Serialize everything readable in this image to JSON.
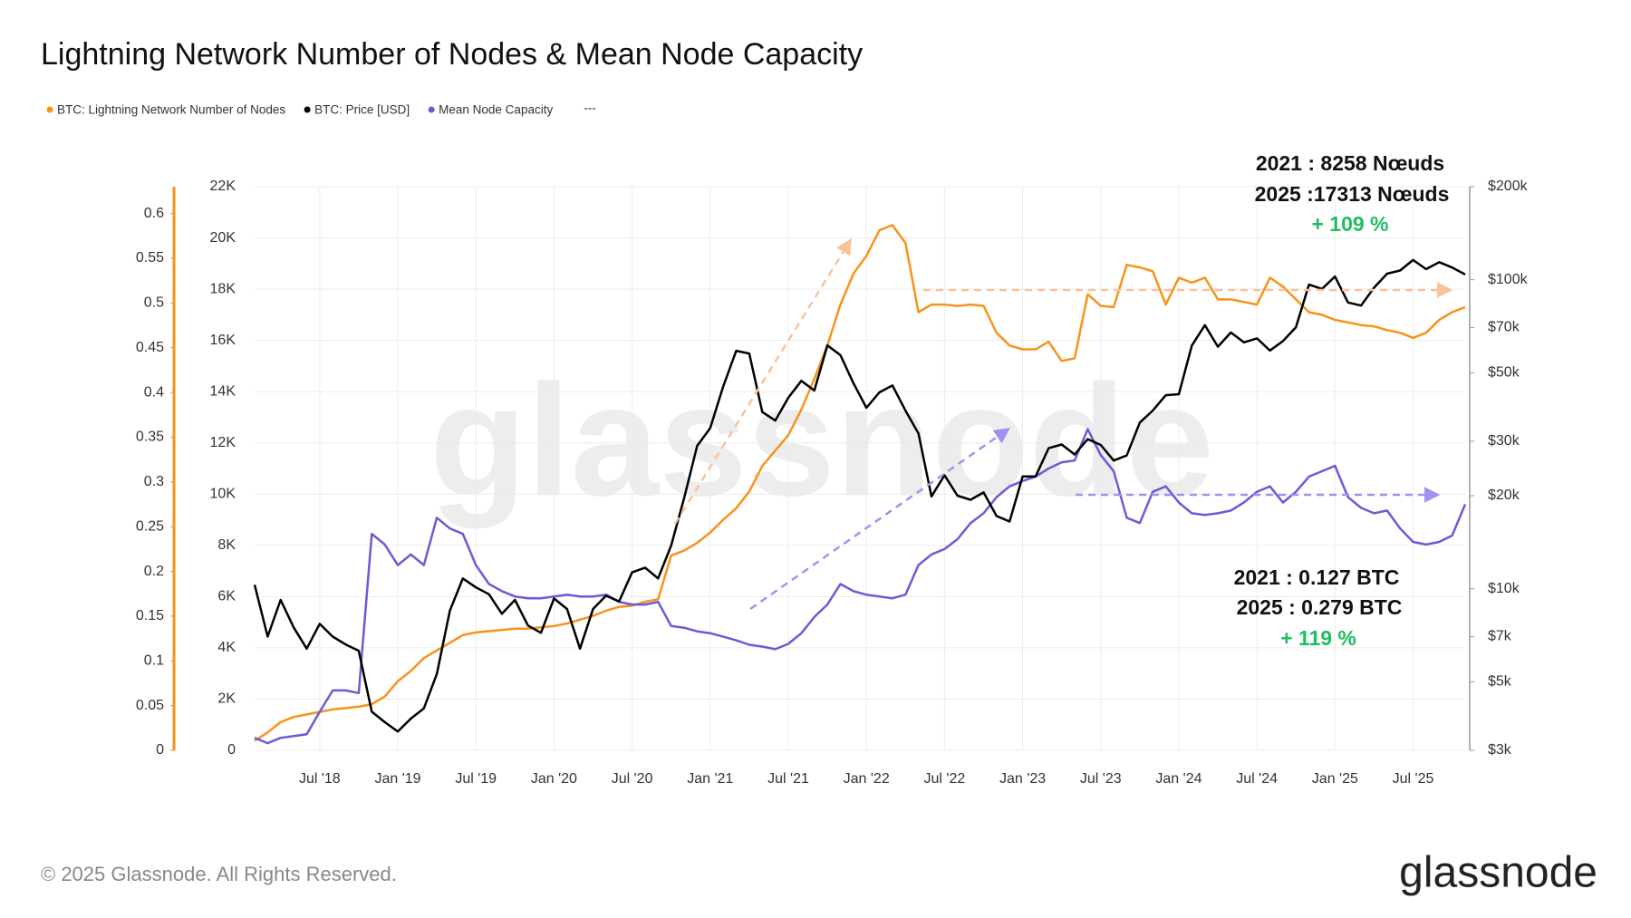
{
  "chart_data": {
    "type": "line",
    "title": "Lightning Network Number of Nodes & Mean Node Capacity",
    "watermark": "glassnode",
    "legend_note": "---",
    "footer": "© 2025 Glassnode. All Rights Reserved.",
    "logo": "glassnode",
    "annotations": [
      "2021 : 8258 Nœuds",
      "2025 :17313 Nœuds",
      "+ 109 %",
      "2021 : 0.127 BTC",
      "2025 : 0.279 BTC",
      "+ 119 %"
    ],
    "x": [
      "2018-02",
      "2018-03",
      "2018-04",
      "2018-05",
      "2018-06",
      "2018-07",
      "2018-08",
      "2018-09",
      "2018-10",
      "2018-11",
      "2018-12",
      "2019-01",
      "2019-02",
      "2019-03",
      "2019-04",
      "2019-05",
      "2019-06",
      "2019-07",
      "2019-08",
      "2019-09",
      "2019-10",
      "2019-11",
      "2019-12",
      "2020-01",
      "2020-02",
      "2020-03",
      "2020-04",
      "2020-05",
      "2020-06",
      "2020-07",
      "2020-08",
      "2020-09",
      "2020-10",
      "2020-11",
      "2020-12",
      "2021-01",
      "2021-02",
      "2021-03",
      "2021-04",
      "2021-05",
      "2021-06",
      "2021-07",
      "2021-08",
      "2021-09",
      "2021-10",
      "2021-11",
      "2021-12",
      "2022-01",
      "2022-02",
      "2022-03",
      "2022-04",
      "2022-05",
      "2022-06",
      "2022-07",
      "2022-08",
      "2022-09",
      "2022-10",
      "2022-11",
      "2022-12",
      "2023-01",
      "2023-02",
      "2023-03",
      "2023-04",
      "2023-05",
      "2023-06",
      "2023-07",
      "2023-08",
      "2023-09",
      "2023-10",
      "2023-11",
      "2023-12",
      "2024-01",
      "2024-02",
      "2024-03",
      "2024-04",
      "2024-05",
      "2024-06",
      "2024-07",
      "2024-08",
      "2024-09",
      "2024-10",
      "2024-11",
      "2024-12",
      "2025-01",
      "2025-02",
      "2025-03",
      "2025-04",
      "2025-05",
      "2025-06",
      "2025-07",
      "2025-08",
      "2025-09",
      "2025-10",
      "2025-11"
    ],
    "xlim": [
      "2018-02",
      "2025-11"
    ],
    "xticks": [
      {
        "value": "2018-07",
        "label": "Jul '18"
      },
      {
        "value": "2019-01",
        "label": "Jan '19"
      },
      {
        "value": "2019-07",
        "label": "Jul '19"
      },
      {
        "value": "2020-01",
        "label": "Jan '20"
      },
      {
        "value": "2020-07",
        "label": "Jul '20"
      },
      {
        "value": "2021-01",
        "label": "Jan '21"
      },
      {
        "value": "2021-07",
        "label": "Jul '21"
      },
      {
        "value": "2022-01",
        "label": "Jan '22"
      },
      {
        "value": "2022-07",
        "label": "Jul '22"
      },
      {
        "value": "2023-01",
        "label": "Jan '23"
      },
      {
        "value": "2023-07",
        "label": "Jul '23"
      },
      {
        "value": "2024-01",
        "label": "Jan '24"
      },
      {
        "value": "2024-07",
        "label": "Jul '24"
      },
      {
        "value": "2025-01",
        "label": "Jan '25"
      },
      {
        "value": "2025-07",
        "label": "Jul '25"
      }
    ],
    "ylim": [
      0,
      22000
    ],
    "yticks": [
      0,
      {
        "value": 2000,
        "label": "2K"
      },
      {
        "value": 4000,
        "label": "4K"
      },
      {
        "value": 6000,
        "label": "6K"
      },
      {
        "value": 8000,
        "label": "8K"
      },
      {
        "value": 10000,
        "label": "10K"
      },
      {
        "value": 12000,
        "label": "12K"
      },
      {
        "value": 14000,
        "label": "14K"
      },
      {
        "value": 16000,
        "label": "16K"
      },
      {
        "value": 18000,
        "label": "18K"
      },
      {
        "value": 20000,
        "label": "20K"
      },
      {
        "value": 22000,
        "label": "22K"
      }
    ],
    "y2lim": [
      3000,
      200000
    ],
    "y2_log": true,
    "y2ticks": [
      {
        "value": 3000,
        "label": "$3k"
      },
      {
        "value": 5000,
        "label": "$5k"
      },
      {
        "value": 7000,
        "label": "$7k"
      },
      {
        "value": 10000,
        "label": "$10k"
      },
      {
        "value": 20000,
        "label": "$20k"
      },
      {
        "value": 30000,
        "label": "$30k"
      },
      {
        "value": 50000,
        "label": "$50k"
      },
      {
        "value": 70000,
        "label": "$70k"
      },
      {
        "value": 100000,
        "label": "$100k"
      },
      {
        "value": 200000,
        "label": "$200k"
      }
    ],
    "y3lim": [
      0,
      0.63
    ],
    "y3ticks": [
      0,
      0.05,
      0.1,
      0.15,
      0.2,
      0.25,
      0.3,
      0.35,
      0.4,
      0.45,
      0.5,
      0.55,
      0.6
    ],
    "grid": true,
    "series": [
      {
        "name": "BTC: Lightning Network Number of Nodes",
        "color": "#f7931a",
        "axis": "y",
        "values": [
          370,
          700,
          1100,
          1300,
          1400,
          1500,
          1600,
          1650,
          1700,
          1800,
          2100,
          2700,
          3100,
          3600,
          3900,
          4200,
          4500,
          4600,
          4650,
          4700,
          4750,
          4750,
          4800,
          4850,
          4950,
          5100,
          5250,
          5450,
          5600,
          5650,
          5800,
          5900,
          7600,
          7800,
          8100,
          8500,
          9000,
          9450,
          10100,
          11100,
          11700,
          12300,
          13300,
          14500,
          15800,
          17400,
          18600,
          19300,
          20300,
          20500,
          19800,
          17100,
          17400,
          17400,
          17350,
          17400,
          17350,
          16300,
          15800,
          15650,
          15650,
          15950,
          15200,
          15300,
          17800,
          17350,
          17300,
          18950,
          18850,
          18700,
          17400,
          18450,
          18250,
          18450,
          17600,
          17600,
          17500,
          17400,
          18450,
          18100,
          17600,
          17100,
          17000,
          16800,
          16700,
          16600,
          16550,
          16400,
          16300,
          16100,
          16300,
          16800,
          17100,
          17300
        ]
      },
      {
        "name": "BTC: Price [USD]",
        "color": "#000000",
        "axis": "y2",
        "values": [
          10300,
          7000,
          9200,
          7500,
          6400,
          7700,
          7000,
          6600,
          6300,
          4000,
          3700,
          3450,
          3800,
          4100,
          5300,
          8500,
          10800,
          10100,
          9600,
          8300,
          9200,
          7600,
          7200,
          9300,
          8600,
          6400,
          8600,
          9500,
          9100,
          11300,
          11700,
          10800,
          13800,
          19700,
          29000,
          33100,
          45200,
          58900,
          57700,
          37300,
          35000,
          41500,
          47100,
          43800,
          61300,
          57000,
          46300,
          38500,
          43200,
          45500,
          37700,
          31800,
          19900,
          23300,
          20000,
          19400,
          20500,
          17200,
          16500,
          23100,
          23100,
          28500,
          29300,
          27200,
          30500,
          29200,
          26000,
          27000,
          34500,
          37700,
          42300,
          42600,
          61200,
          71300,
          60700,
          67500,
          62700,
          64600,
          59000,
          63300,
          70200,
          96400,
          93400,
          102400,
          84400,
          82500,
          94200,
          104600,
          107100,
          115800,
          108200,
          114000,
          109500,
          104000
        ]
      },
      {
        "name": "Mean Node Capacity",
        "color": "#6b5bd6",
        "axis": "y3",
        "values": [
          0.014,
          0.008,
          0.014,
          0.016,
          0.018,
          0.043,
          0.067,
          0.067,
          0.064,
          0.242,
          0.23,
          0.207,
          0.219,
          0.207,
          0.26,
          0.248,
          0.242,
          0.207,
          0.186,
          0.178,
          0.172,
          0.17,
          0.17,
          0.172,
          0.174,
          0.172,
          0.172,
          0.174,
          0.166,
          0.163,
          0.163,
          0.166,
          0.139,
          0.137,
          0.133,
          0.131,
          0.127,
          0.123,
          0.118,
          0.116,
          0.113,
          0.119,
          0.131,
          0.149,
          0.163,
          0.186,
          0.178,
          0.174,
          0.172,
          0.17,
          0.174,
          0.207,
          0.219,
          0.225,
          0.236,
          0.254,
          0.265,
          0.283,
          0.295,
          0.301,
          0.306,
          0.315,
          0.322,
          0.324,
          0.359,
          0.33,
          0.312,
          0.26,
          0.254,
          0.289,
          0.295,
          0.277,
          0.265,
          0.263,
          0.265,
          0.268,
          0.277,
          0.289,
          0.295,
          0.277,
          0.289,
          0.306,
          0.312,
          0.318,
          0.283,
          0.271,
          0.265,
          0.268,
          0.248,
          0.233,
          0.23,
          0.233,
          0.24,
          0.275
        ]
      }
    ]
  }
}
